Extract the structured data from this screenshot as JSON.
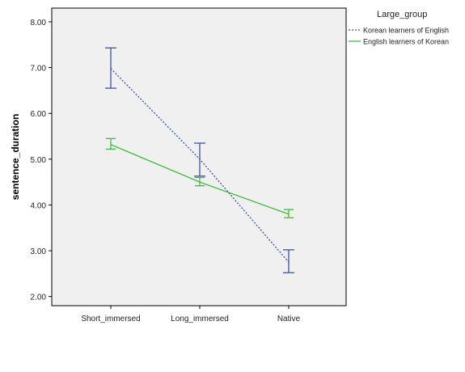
{
  "chart_data": {
    "type": "line",
    "categories": [
      "Short_immersed",
      "Long_immersed",
      "Native"
    ],
    "ylabel": "sentence_duration",
    "ylim": [
      1.8,
      8.3
    ],
    "yticks": [
      2.0,
      3.0,
      4.0,
      5.0,
      6.0,
      7.0,
      8.0
    ],
    "ytick_labels": [
      "2.00",
      "3.00",
      "4.00",
      "5.00",
      "6.00",
      "7.00",
      "8.00"
    ],
    "legend_title": "Large_group",
    "legend_position": "top-right outside plot",
    "grid": false,
    "plot_background": "#f0f0f0",
    "series": [
      {
        "name": "Korean learners of English",
        "color": "#3f51a8",
        "line_style": "dotted",
        "values": [
          6.98,
          5.0,
          2.75
        ],
        "error_low": [
          6.55,
          4.63,
          2.52
        ],
        "error_high": [
          7.43,
          5.35,
          3.02
        ]
      },
      {
        "name": "English learners of Korean",
        "color": "#3cbf3c",
        "line_style": "solid",
        "values": [
          5.32,
          4.5,
          3.8
        ],
        "error_low": [
          5.22,
          4.42,
          3.72
        ],
        "error_high": [
          5.45,
          4.6,
          3.9
        ]
      }
    ]
  }
}
